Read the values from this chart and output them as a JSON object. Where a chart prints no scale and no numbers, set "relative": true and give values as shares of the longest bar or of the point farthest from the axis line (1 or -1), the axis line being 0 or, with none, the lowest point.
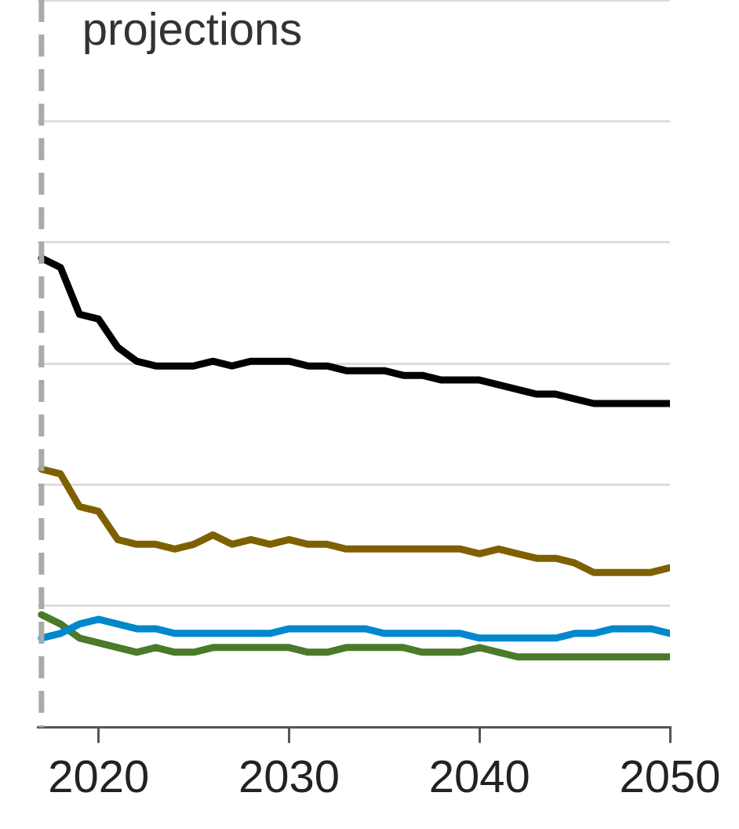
{
  "chart_data": {
    "type": "line",
    "relative": true,
    "x": [
      2017,
      2018,
      2019,
      2020,
      2021,
      2022,
      2023,
      2024,
      2025,
      2026,
      2027,
      2028,
      2029,
      2030,
      2031,
      2032,
      2033,
      2034,
      2035,
      2036,
      2037,
      2038,
      2039,
      2040,
      2041,
      2042,
      2043,
      2044,
      2045,
      2046,
      2047,
      2048,
      2049,
      2050
    ],
    "xlim": [
      2016.8,
      2050
    ],
    "xticks": [
      2020,
      2030,
      2040,
      2050
    ],
    "series": [
      {
        "color": "#000000",
        "values": [
          1,
          0.98,
          0.88,
          0.87,
          0.81,
          0.78,
          0.77,
          0.77,
          0.77,
          0.78,
          0.77,
          0.78,
          0.78,
          0.78,
          0.77,
          0.77,
          0.76,
          0.76,
          0.76,
          0.75,
          0.75,
          0.74,
          0.74,
          0.74,
          0.73,
          0.72,
          0.71,
          0.71,
          0.7,
          0.69,
          0.69,
          0.69,
          0.69,
          0.69
        ]
      },
      {
        "color": "#7f6000",
        "values": [
          0.55,
          0.54,
          0.47,
          0.46,
          0.4,
          0.39,
          0.39,
          0.38,
          0.39,
          0.41,
          0.39,
          0.4,
          0.39,
          0.4,
          0.39,
          0.39,
          0.38,
          0.38,
          0.38,
          0.38,
          0.38,
          0.38,
          0.38,
          0.37,
          0.38,
          0.37,
          0.36,
          0.36,
          0.35,
          0.33,
          0.33,
          0.33,
          0.33,
          0.34
        ]
      },
      {
        "color": "#0088cc",
        "values": [
          0.19,
          0.2,
          0.22,
          0.23,
          0.22,
          0.21,
          0.21,
          0.2,
          0.2,
          0.2,
          0.2,
          0.2,
          0.2,
          0.21,
          0.21,
          0.21,
          0.21,
          0.21,
          0.2,
          0.2,
          0.2,
          0.2,
          0.2,
          0.19,
          0.19,
          0.19,
          0.19,
          0.19,
          0.2,
          0.2,
          0.21,
          0.21,
          0.21,
          0.2
        ]
      },
      {
        "color": "#4a7a2a",
        "values": [
          0.24,
          0.22,
          0.19,
          0.18,
          0.17,
          0.16,
          0.17,
          0.16,
          0.16,
          0.17,
          0.17,
          0.17,
          0.17,
          0.17,
          0.16,
          0.16,
          0.17,
          0.17,
          0.17,
          0.17,
          0.16,
          0.16,
          0.16,
          0.17,
          0.16,
          0.15,
          0.15,
          0.15,
          0.15,
          0.15,
          0.15,
          0.15,
          0.15,
          0.15
        ]
      }
    ],
    "ref_lines": [
      {
        "axis": "x",
        "value": 2017,
        "label": "projections",
        "color": "#aaaaaa",
        "line_style": "dashed"
      }
    ],
    "grid": "y",
    "legend": false,
    "marker": "none",
    "line_style": "solid"
  }
}
